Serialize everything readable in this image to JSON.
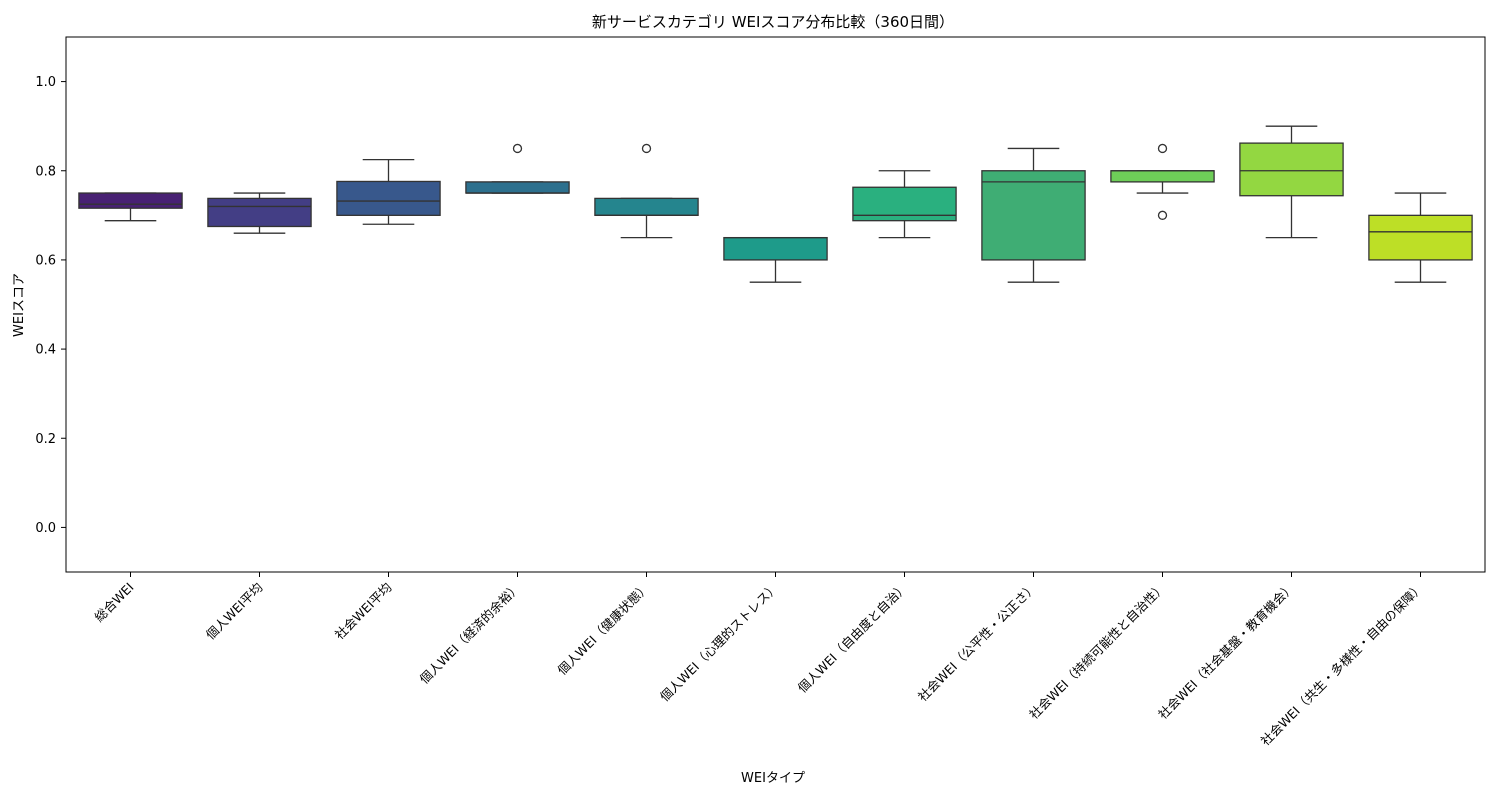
{
  "chart_data": {
    "type": "box",
    "title": "新サービスカテゴリ WEIスコア分布比較（360日間）",
    "xlabel": "WEIタイプ",
    "ylabel": "WEIスコア",
    "ylim": [
      -0.1,
      1.1
    ],
    "yticks": [
      "0.0",
      "0.2",
      "0.4",
      "0.6",
      "0.8",
      "1.0"
    ],
    "ytick_values": [
      0.0,
      0.2,
      0.4,
      0.6,
      0.8,
      1.0
    ],
    "grid": false,
    "categories": [
      "総合WEI",
      "個人WEI平均",
      "社会WEI平均",
      "個人WEI（経済的余裕）",
      "個人WEI（健康状態）",
      "個人WEI（心理的ストレス）",
      "個人WEI（自由度と自治）",
      "社会WEI（公平性・公正さ）",
      "社会WEI（持続可能性と自治性）",
      "社会WEI（社会基盤・教育機会）",
      "社会WEI（共生・多様性・自由の保障）"
    ],
    "boxes": [
      {
        "whisker_low": 0.688,
        "q1": 0.716,
        "median": 0.725,
        "q3": 0.75,
        "whisker_high": 0.75,
        "outliers": [],
        "color": "#482173"
      },
      {
        "whisker_low": 0.66,
        "q1": 0.675,
        "median": 0.72,
        "q3": 0.738,
        "whisker_high": 0.75,
        "outliers": [],
        "color": "#433e85"
      },
      {
        "whisker_low": 0.68,
        "q1": 0.7,
        "median": 0.732,
        "q3": 0.776,
        "whisker_high": 0.825,
        "outliers": [],
        "color": "#38588c"
      },
      {
        "whisker_low": 0.75,
        "q1": 0.75,
        "median": 0.75,
        "q3": 0.775,
        "whisker_high": 0.775,
        "outliers": [
          0.85
        ],
        "color": "#2d708e"
      },
      {
        "whisker_low": 0.65,
        "q1": 0.7,
        "median": 0.7,
        "q3": 0.738,
        "whisker_high": 0.738,
        "outliers": [
          0.85
        ],
        "color": "#25858e"
      },
      {
        "whisker_low": 0.55,
        "q1": 0.6,
        "median": 0.65,
        "q3": 0.65,
        "whisker_high": 0.65,
        "outliers": [],
        "color": "#1e9b8a"
      },
      {
        "whisker_low": 0.65,
        "q1": 0.688,
        "median": 0.7,
        "q3": 0.763,
        "whisker_high": 0.8,
        "outliers": [],
        "color": "#2ab07f"
      },
      {
        "whisker_low": 0.55,
        "q1": 0.6,
        "median": 0.775,
        "q3": 0.8,
        "whisker_high": 0.85,
        "outliers": [],
        "color": "#3fad74"
      },
      {
        "whisker_low": 0.75,
        "q1": 0.775,
        "median": 0.8,
        "q3": 0.8,
        "whisker_high": 0.8,
        "outliers": [
          0.85,
          0.7
        ],
        "color": "#6ece58"
      },
      {
        "whisker_low": 0.65,
        "q1": 0.744,
        "median": 0.8,
        "q3": 0.862,
        "whisker_high": 0.9,
        "outliers": [],
        "color": "#93d741"
      },
      {
        "whisker_low": 0.55,
        "q1": 0.6,
        "median": 0.663,
        "q3": 0.7,
        "whisker_high": 0.75,
        "outliers": [],
        "color": "#bddf26"
      }
    ]
  }
}
